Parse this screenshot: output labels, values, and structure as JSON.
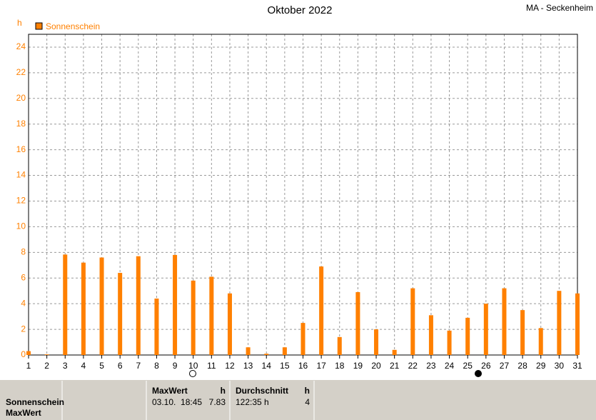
{
  "chart_data": {
    "type": "bar",
    "title": "Oktober 2022",
    "station": "MA - Seckenheim",
    "y_label": "h",
    "x": [
      1,
      2,
      3,
      4,
      5,
      6,
      7,
      8,
      9,
      10,
      11,
      12,
      13,
      14,
      15,
      16,
      17,
      18,
      19,
      20,
      21,
      22,
      23,
      24,
      25,
      26,
      27,
      28,
      29,
      30,
      31
    ],
    "series": [
      {
        "name": "Sonnenschein",
        "color": "#ff8000",
        "values": [
          0.3,
          0.05,
          7.83,
          7.2,
          7.6,
          6.4,
          7.7,
          4.4,
          7.8,
          5.8,
          6.1,
          4.8,
          0.6,
          0.1,
          0.6,
          2.5,
          6.9,
          1.4,
          4.9,
          2.0,
          0.4,
          5.2,
          3.1,
          1.9,
          2.9,
          4.0,
          5.2,
          3.5,
          2.1,
          5.0,
          4.8
        ]
      }
    ],
    "xlim": [
      1,
      31
    ],
    "xticks": [
      1,
      2,
      3,
      4,
      5,
      6,
      7,
      8,
      9,
      10,
      11,
      12,
      13,
      14,
      15,
      16,
      17,
      18,
      19,
      20,
      21,
      22,
      23,
      24,
      25,
      26,
      27,
      28,
      29,
      30,
      31
    ],
    "ylim": [
      0,
      25
    ],
    "yticks": [
      0,
      2,
      4,
      6,
      8,
      10,
      12,
      14,
      16,
      18,
      20,
      22,
      24
    ],
    "grid": true,
    "legend": "top-left"
  },
  "footer": {
    "row_labels": [
      "Sonnenschein",
      "MaxWert"
    ],
    "columns": [
      {
        "header": "MaxWert",
        "unit": "h",
        "cells": [
          "03.10.  18:45",
          "7.83"
        ]
      },
      {
        "header": "Durchschnitt",
        "unit": "h",
        "cells": [
          "122:35 h",
          "4"
        ]
      }
    ]
  }
}
